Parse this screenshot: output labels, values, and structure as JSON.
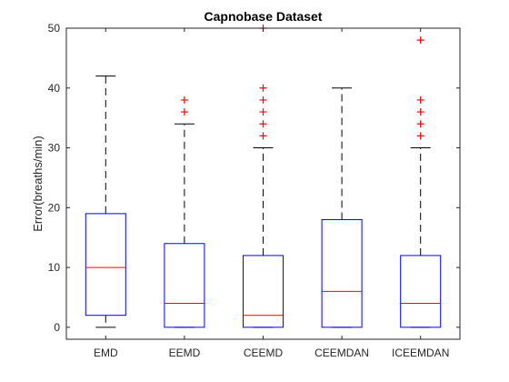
{
  "chart_data": {
    "type": "box",
    "title": "Capnobase Dataset",
    "xlabel": "",
    "ylabel": "Error(breaths/min)",
    "ylim": [
      -2,
      50
    ],
    "yticks": [
      0,
      10,
      20,
      30,
      40,
      50
    ],
    "grid": false,
    "categories": [
      "EMD",
      "EEMD",
      "CEEMD",
      "CEEMDAN",
      "ICEEMDAN"
    ],
    "boxes": [
      {
        "name": "EMD",
        "whisker_low": 0,
        "q1": 2,
        "median": 10,
        "q3": 19,
        "whisker_high": 42,
        "outliers": []
      },
      {
        "name": "EEMD",
        "whisker_low": 0,
        "q1": 0,
        "median": 4,
        "q3": 14,
        "whisker_high": 34,
        "outliers": [
          36,
          38
        ]
      },
      {
        "name": "CEEMD",
        "whisker_low": 0,
        "q1": 0,
        "median": 2,
        "q3": 12,
        "whisker_high": 30,
        "outliers": [
          32,
          34,
          36,
          38,
          40,
          50
        ]
      },
      {
        "name": "CEEMDAN",
        "whisker_low": 0,
        "q1": 0,
        "median": 6,
        "q3": 18,
        "whisker_high": 40,
        "outliers": []
      },
      {
        "name": "ICEEMDAN",
        "whisker_low": 0,
        "q1": 0,
        "median": 4,
        "q3": 12,
        "whisker_high": 30,
        "outliers": [
          32,
          34,
          36,
          38,
          48
        ]
      }
    ],
    "colors": {
      "box": "#0000ff",
      "median": "#ff0000",
      "whisker": "#000000",
      "outlier": "#ff0000",
      "axis": "#262626"
    }
  }
}
